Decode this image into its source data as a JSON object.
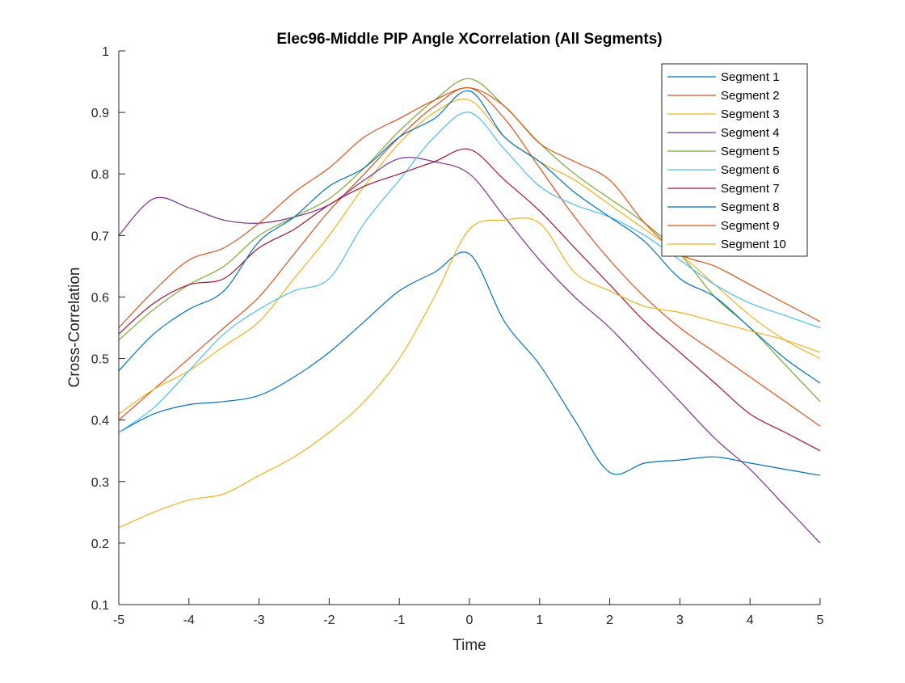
{
  "chart_data": {
    "type": "line",
    "title": "Elec96-Middle PIP Angle XCorrelation (All Segments)",
    "xlabel": "Time",
    "ylabel": "Cross-Correlation",
    "xlim": [
      -5,
      5
    ],
    "ylim": [
      0.1,
      1
    ],
    "xticks": [
      -5,
      -4,
      -3,
      -2,
      -1,
      0,
      1,
      2,
      3,
      4,
      5
    ],
    "yticks": [
      0.1,
      0.2,
      0.3,
      0.4,
      0.5,
      0.6,
      0.7,
      0.8,
      0.9,
      1
    ],
    "xtick_labels": [
      "-5",
      "-4",
      "-3",
      "-2",
      "-1",
      "0",
      "1",
      "2",
      "3",
      "4",
      "5"
    ],
    "ytick_labels": [
      "0.1",
      "0.2",
      "0.3",
      "0.4",
      "0.5",
      "0.6",
      "0.7",
      "0.8",
      "0.9",
      "1"
    ],
    "grid": false,
    "legend_position": "top-right",
    "series": [
      {
        "name": "Segment 1",
        "color": "#0072BD",
        "x": [
          -5,
          -4.5,
          -4,
          -3.5,
          -3,
          -2.5,
          -2,
          -1.5,
          -1,
          -0.5,
          0,
          0.5,
          1,
          1.5,
          2,
          2.5,
          3,
          3.5,
          4,
          4.5,
          5
        ],
        "y": [
          0.38,
          0.41,
          0.425,
          0.43,
          0.44,
          0.47,
          0.51,
          0.56,
          0.61,
          0.64,
          0.67,
          0.56,
          0.49,
          0.4,
          0.315,
          0.33,
          0.335,
          0.34,
          0.33,
          0.32,
          0.31
        ]
      },
      {
        "name": "Segment 2",
        "color": "#D95319",
        "x": [
          -5,
          -4.5,
          -4,
          -3.5,
          -3,
          -2.5,
          -2,
          -1.5,
          -1,
          -0.5,
          0,
          0.5,
          1,
          1.5,
          2,
          2.5,
          3,
          3.5,
          4,
          4.5,
          5
        ],
        "y": [
          0.4,
          0.45,
          0.5,
          0.55,
          0.6,
          0.67,
          0.74,
          0.8,
          0.86,
          0.91,
          0.94,
          0.89,
          0.81,
          0.73,
          0.66,
          0.6,
          0.55,
          0.51,
          0.47,
          0.43,
          0.39
        ]
      },
      {
        "name": "Segment 3",
        "color": "#EDB120",
        "x": [
          -5,
          -4.5,
          -4,
          -3.5,
          -3,
          -2.5,
          -2,
          -1.5,
          -1,
          -0.5,
          0,
          0.5,
          1,
          1.5,
          2,
          2.5,
          3,
          3.5,
          4,
          4.5,
          5
        ],
        "y": [
          0.41,
          0.45,
          0.48,
          0.52,
          0.56,
          0.63,
          0.7,
          0.78,
          0.85,
          0.9,
          0.92,
          0.86,
          0.82,
          0.79,
          0.75,
          0.71,
          0.67,
          0.62,
          0.57,
          0.53,
          0.5
        ]
      },
      {
        "name": "Segment 4",
        "color": "#7E2F8E",
        "x": [
          -5,
          -4.5,
          -4,
          -3.5,
          -3,
          -2.5,
          -2,
          -1.5,
          -1,
          -0.5,
          0,
          0.5,
          1,
          1.5,
          2,
          2.5,
          3,
          3.5,
          4,
          4.5,
          5
        ],
        "y": [
          0.7,
          0.76,
          0.745,
          0.725,
          0.72,
          0.73,
          0.75,
          0.79,
          0.825,
          0.82,
          0.8,
          0.73,
          0.66,
          0.6,
          0.55,
          0.49,
          0.43,
          0.37,
          0.32,
          0.26,
          0.2
        ]
      },
      {
        "name": "Segment 5",
        "color": "#77AC30",
        "x": [
          -5,
          -4.5,
          -4,
          -3.5,
          -3,
          -2.5,
          -2,
          -1.5,
          -1,
          -0.5,
          0,
          0.5,
          1,
          1.5,
          2,
          2.5,
          3,
          3.5,
          4,
          4.5,
          5
        ],
        "y": [
          0.53,
          0.58,
          0.62,
          0.65,
          0.7,
          0.73,
          0.76,
          0.81,
          0.87,
          0.92,
          0.955,
          0.91,
          0.85,
          0.8,
          0.76,
          0.72,
          0.67,
          0.6,
          0.55,
          0.49,
          0.43
        ]
      },
      {
        "name": "Segment 6",
        "color": "#4DBEEE",
        "x": [
          -5,
          -4.5,
          -4,
          -3.5,
          -3,
          -2.5,
          -2,
          -1.5,
          -1,
          -0.5,
          0,
          0.5,
          1,
          1.5,
          2,
          2.5,
          3,
          3.5,
          4,
          4.5,
          5
        ],
        "y": [
          0.38,
          0.42,
          0.48,
          0.54,
          0.58,
          0.61,
          0.63,
          0.72,
          0.79,
          0.86,
          0.9,
          0.84,
          0.78,
          0.75,
          0.73,
          0.7,
          0.66,
          0.62,
          0.59,
          0.57,
          0.55
        ]
      },
      {
        "name": "Segment 7",
        "color": "#A2142F",
        "x": [
          -5,
          -4.5,
          -4,
          -3.5,
          -3,
          -2.5,
          -2,
          -1.5,
          -1,
          -0.5,
          0,
          0.5,
          1,
          1.5,
          2,
          2.5,
          3,
          3.5,
          4,
          4.5,
          5
        ],
        "y": [
          0.54,
          0.59,
          0.62,
          0.63,
          0.68,
          0.71,
          0.75,
          0.78,
          0.8,
          0.82,
          0.84,
          0.79,
          0.74,
          0.68,
          0.62,
          0.56,
          0.51,
          0.46,
          0.41,
          0.38,
          0.35
        ]
      },
      {
        "name": "Segment 8",
        "color": "#0072BD",
        "x": [
          -5,
          -4.5,
          -4,
          -3.5,
          -3,
          -2.5,
          -2,
          -1.5,
          -1,
          -0.5,
          0,
          0.5,
          1,
          1.5,
          2,
          2.5,
          3,
          3.5,
          4,
          4.5,
          5
        ],
        "y": [
          0.48,
          0.54,
          0.58,
          0.61,
          0.69,
          0.73,
          0.78,
          0.81,
          0.86,
          0.89,
          0.935,
          0.86,
          0.82,
          0.77,
          0.73,
          0.69,
          0.63,
          0.6,
          0.55,
          0.5,
          0.46
        ]
      },
      {
        "name": "Segment 9",
        "color": "#D95319",
        "x": [
          -5,
          -4.5,
          -4,
          -3.5,
          -3,
          -2.5,
          -2,
          -1.5,
          -1,
          -0.5,
          0,
          0.5,
          1,
          1.5,
          2,
          2.5,
          3,
          3.5,
          4,
          4.5,
          5
        ],
        "y": [
          0.55,
          0.61,
          0.66,
          0.68,
          0.72,
          0.77,
          0.81,
          0.86,
          0.89,
          0.92,
          0.94,
          0.91,
          0.85,
          0.82,
          0.79,
          0.72,
          0.67,
          0.65,
          0.62,
          0.59,
          0.56
        ]
      },
      {
        "name": "Segment 10",
        "color": "#EDB120",
        "x": [
          -5,
          -4.5,
          -4,
          -3.5,
          -3,
          -2.5,
          -2,
          -1.5,
          -1,
          -0.5,
          0,
          0.5,
          1,
          1.5,
          2,
          2.5,
          3,
          3.5,
          4,
          4.5,
          5
        ],
        "y": [
          0.225,
          0.25,
          0.27,
          0.28,
          0.31,
          0.34,
          0.38,
          0.43,
          0.5,
          0.6,
          0.71,
          0.725,
          0.72,
          0.64,
          0.61,
          0.585,
          0.575,
          0.56,
          0.545,
          0.53,
          0.51
        ]
      }
    ]
  }
}
